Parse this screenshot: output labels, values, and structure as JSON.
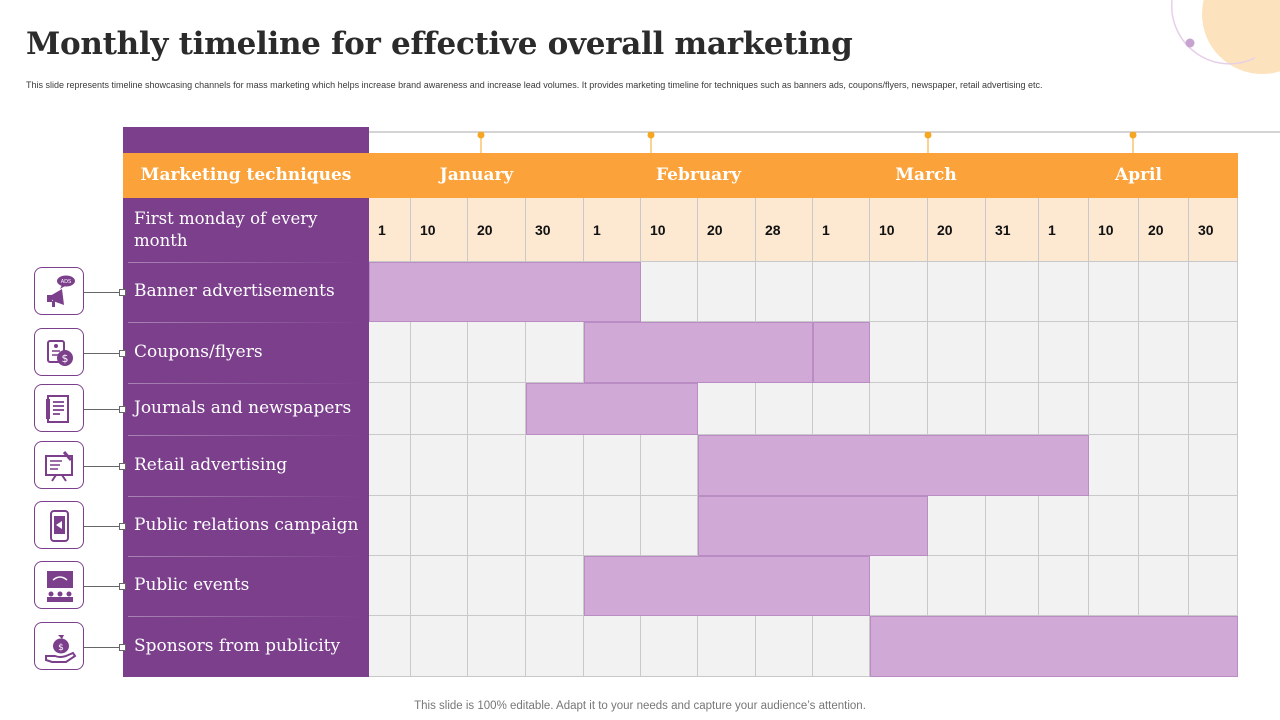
{
  "title": "Monthly timeline for effective overall marketing",
  "subtitle": "This slide represents timeline showcasing channels for mass marketing which helps increase brand awareness and increase lead volumes.  It provides marketing timeline  for techniques such as banners ads, coupons/flyers, newspaper, retail advertising etc.",
  "footer": "This slide is 100% editable. Adapt it to your needs and capture your audience’s attention.",
  "colors": {
    "accent_orange": "#fba33a",
    "panel_purple": "#7b3f8c",
    "bar_lilac": "#d0a9d6",
    "day_cell": "#fde9d2",
    "grid_cell": "#f2f2f2"
  },
  "table": {
    "header_label": "Marketing techniques",
    "first_row_label": "First monday of every month",
    "months": [
      {
        "name": "January",
        "start_col": 0,
        "end_col": 3
      },
      {
        "name": "February",
        "start_col": 4,
        "end_col": 7
      },
      {
        "name": "March",
        "start_col": 8,
        "end_col": 11
      },
      {
        "name": "April",
        "start_col": 12,
        "end_col": 15
      }
    ],
    "days": [
      "1",
      "10",
      "20",
      "30",
      "1",
      "10",
      "20",
      "28",
      "1",
      "10",
      "20",
      "31",
      "1",
      "10",
      "20",
      "30"
    ],
    "rows": [
      {
        "label": "Banner advertisements",
        "icon": "megaphone-ads-icon",
        "bars": [
          [
            0,
            4
          ]
        ]
      },
      {
        "label": "Coupons/flyers",
        "icon": "coupon-tag-icon",
        "bars": [
          [
            4,
            7
          ],
          [
            8,
            8
          ]
        ]
      },
      {
        "label": "Journals and newspapers",
        "icon": "newspaper-icon",
        "bars": [
          [
            3,
            5
          ]
        ]
      },
      {
        "label": "Retail advertising",
        "icon": "billboard-icon",
        "bars": [
          [
            6,
            12
          ]
        ]
      },
      {
        "label": "Public relations campaign",
        "icon": "mobile-megaphone-icon",
        "bars": [
          [
            6,
            9
          ]
        ]
      },
      {
        "label": "Public events",
        "icon": "presentation-audience-icon",
        "bars": [
          [
            4,
            8
          ]
        ]
      },
      {
        "label": "Sponsors from publicity",
        "icon": "hand-money-bag-icon",
        "bars": [
          [
            9,
            15
          ]
        ]
      }
    ]
  }
}
